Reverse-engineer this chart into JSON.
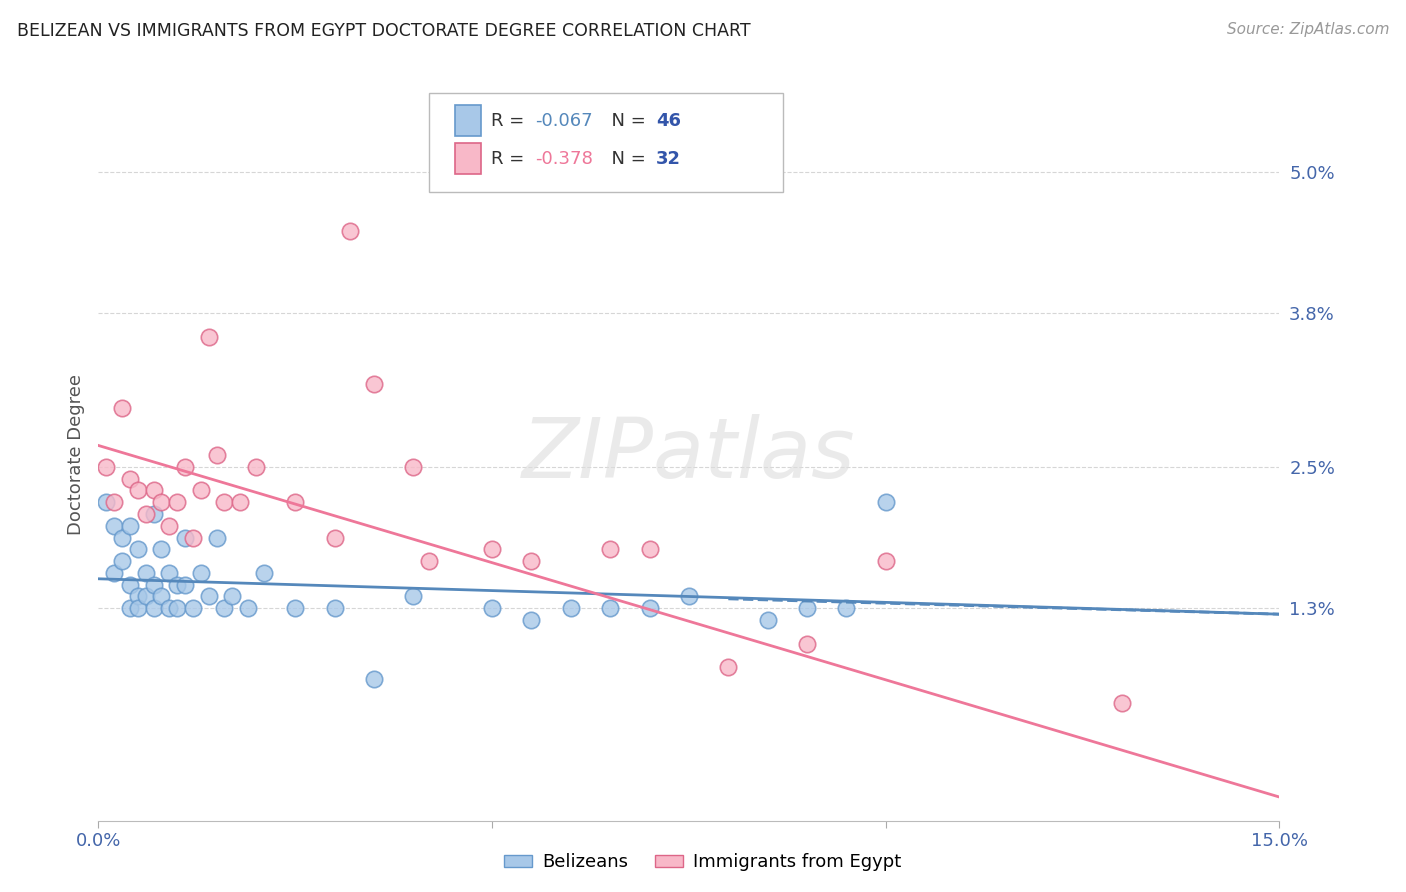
{
  "title": "BELIZEAN VS IMMIGRANTS FROM EGYPT DOCTORATE DEGREE CORRELATION CHART",
  "source": "Source: ZipAtlas.com",
  "ylabel": "Doctorate Degree",
  "ytick_labels": [
    "1.3%",
    "2.5%",
    "3.8%",
    "5.0%"
  ],
  "ytick_values": [
    0.013,
    0.025,
    0.038,
    0.05
  ],
  "xlim": [
    0.0,
    0.15
  ],
  "ylim": [
    -0.005,
    0.057
  ],
  "series1_name": "Belizeans",
  "series2_name": "Immigrants from Egypt",
  "series1_color": "#a8c8e8",
  "series2_color": "#f8b8c8",
  "series1_edge": "#6699cc",
  "series2_edge": "#dd6688",
  "trendline1_color": "#5588bb",
  "trendline2_color": "#ee7799",
  "watermark_text": "ZIPatlas",
  "background_color": "#ffffff",
  "grid_color": "#cccccc",
  "legend_label1": "R = -0.067   N = 46",
  "legend_label2": "R = -0.378   N = 32",
  "legend_r1_color": "#5588bb",
  "legend_r2_color": "#ee7799",
  "legend_n_color": "#3355aa",
  "series1_x": [
    0.001,
    0.002,
    0.002,
    0.003,
    0.003,
    0.004,
    0.004,
    0.004,
    0.005,
    0.005,
    0.005,
    0.006,
    0.006,
    0.007,
    0.007,
    0.007,
    0.008,
    0.008,
    0.009,
    0.009,
    0.01,
    0.01,
    0.011,
    0.011,
    0.012,
    0.013,
    0.014,
    0.015,
    0.016,
    0.017,
    0.019,
    0.021,
    0.025,
    0.03,
    0.035,
    0.04,
    0.05,
    0.055,
    0.06,
    0.065,
    0.07,
    0.075,
    0.085,
    0.09,
    0.095,
    0.1
  ],
  "series1_y": [
    0.022,
    0.02,
    0.016,
    0.019,
    0.017,
    0.02,
    0.015,
    0.013,
    0.018,
    0.014,
    0.013,
    0.016,
    0.014,
    0.021,
    0.015,
    0.013,
    0.018,
    0.014,
    0.016,
    0.013,
    0.015,
    0.013,
    0.019,
    0.015,
    0.013,
    0.016,
    0.014,
    0.019,
    0.013,
    0.014,
    0.013,
    0.016,
    0.013,
    0.013,
    0.007,
    0.014,
    0.013,
    0.012,
    0.013,
    0.013,
    0.013,
    0.014,
    0.012,
    0.013,
    0.013,
    0.022
  ],
  "series2_x": [
    0.001,
    0.002,
    0.003,
    0.004,
    0.005,
    0.006,
    0.007,
    0.008,
    0.009,
    0.01,
    0.011,
    0.012,
    0.013,
    0.014,
    0.015,
    0.016,
    0.018,
    0.02,
    0.025,
    0.03,
    0.032,
    0.035,
    0.04,
    0.042,
    0.05,
    0.055,
    0.065,
    0.07,
    0.08,
    0.09,
    0.1,
    0.13
  ],
  "series2_y": [
    0.025,
    0.022,
    0.03,
    0.024,
    0.023,
    0.021,
    0.023,
    0.022,
    0.02,
    0.022,
    0.025,
    0.019,
    0.023,
    0.036,
    0.026,
    0.022,
    0.022,
    0.025,
    0.022,
    0.019,
    0.045,
    0.032,
    0.025,
    0.017,
    0.018,
    0.017,
    0.018,
    0.018,
    0.008,
    0.01,
    0.017,
    0.005
  ],
  "trendline1_x0": 0.0,
  "trendline1_x1": 0.15,
  "trendline1_y0": 0.0155,
  "trendline1_y1": 0.0125,
  "trendline2_x0": 0.0,
  "trendline2_x1": 0.15,
  "trendline2_y0": 0.0268,
  "trendline2_y1": -0.003
}
